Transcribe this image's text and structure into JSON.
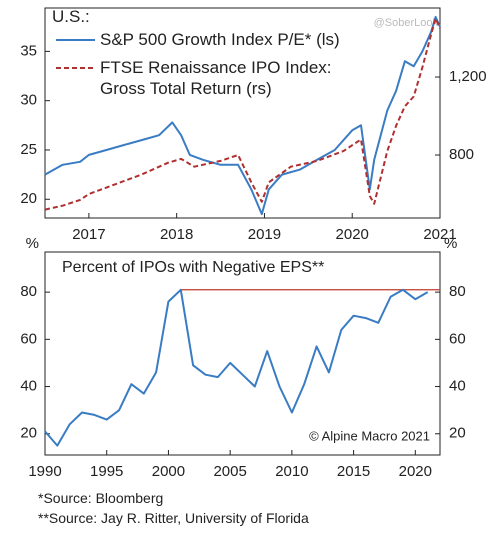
{
  "chart_data": [
    {
      "type": "line",
      "header": "U.S.:",
      "xlim": [
        2016.5,
        2021.0
      ],
      "xticks": [
        2017,
        2018,
        2019,
        2020,
        2021
      ],
      "ylim": [
        18.1,
        39.4
      ],
      "yticks": [
        20,
        25,
        30,
        35
      ],
      "y2lim": [
        477,
        1554
      ],
      "y2ticks": [
        {
          "value": 800,
          "label": "800"
        },
        {
          "value": 1200,
          "label": "1,200"
        }
      ],
      "watermark": "@SoberLook",
      "series": [
        {
          "name": "S&P 500 Growth Index P/E* (ls)",
          "color": "#3a7cc4",
          "axis": "y",
          "x": [
            2016.5,
            2016.7,
            2016.9,
            2017.0,
            2017.2,
            2017.4,
            2017.6,
            2017.8,
            2017.95,
            2018.05,
            2018.15,
            2018.3,
            2018.5,
            2018.7,
            2018.85,
            2018.97,
            2019.05,
            2019.2,
            2019.4,
            2019.6,
            2019.8,
            2020.0,
            2020.1,
            2020.2,
            2020.25,
            2020.4,
            2020.5,
            2020.6,
            2020.7,
            2020.8,
            2020.9,
            2020.95,
            2021.0
          ],
          "values": [
            22.5,
            23.5,
            23.8,
            24.5,
            25,
            25.5,
            26,
            26.5,
            27.8,
            26.5,
            24.5,
            24,
            23.5,
            23.5,
            21,
            18.5,
            21,
            22.5,
            23,
            24,
            25,
            27,
            27.5,
            21,
            24,
            29,
            31,
            34,
            33.5,
            35,
            37,
            38.5,
            37.5
          ]
        },
        {
          "name": "FTSE Renaissance IPO Index:\nGross Total Return (rs)",
          "color": "#b03030",
          "axis": "y2",
          "dashed": true,
          "x": [
            2016.5,
            2016.7,
            2016.9,
            2017.0,
            2017.3,
            2017.6,
            2017.9,
            2018.05,
            2018.2,
            2018.5,
            2018.7,
            2018.85,
            2018.97,
            2019.05,
            2019.3,
            2019.6,
            2019.9,
            2020.1,
            2020.2,
            2020.25,
            2020.4,
            2020.5,
            2020.6,
            2020.7,
            2020.8,
            2020.9,
            2020.95,
            2021.0
          ],
          "values": [
            520,
            540,
            570,
            600,
            650,
            700,
            760,
            780,
            740,
            770,
            800,
            660,
            560,
            660,
            740,
            770,
            820,
            880,
            590,
            550,
            820,
            950,
            1050,
            1100,
            1250,
            1420,
            1500,
            1450
          ]
        }
      ]
    },
    {
      "type": "line",
      "title": "Percent of IPOs with Negative EPS**",
      "y_unit": "%",
      "y2_unit": "%",
      "annotation": "© Alpine Macro 2021",
      "xlim": [
        1990,
        2022
      ],
      "xticks": [
        1990,
        1995,
        2000,
        2005,
        2010,
        2015,
        2020
      ],
      "ylim": [
        11,
        97
      ],
      "yticks": [
        20,
        40,
        60,
        80
      ],
      "y2lim": [
        11,
        97
      ],
      "y2ticks": [
        20,
        40,
        60,
        80
      ],
      "reference_line": {
        "value": 81,
        "from": 2001,
        "color": "#c0392b"
      },
      "series": [
        {
          "color": "#3a7cc4",
          "x": [
            1990,
            1991,
            1992,
            1993,
            1994,
            1995,
            1996,
            1997,
            1998,
            1999,
            2000,
            2001,
            2002,
            2003,
            2004,
            2005,
            2006,
            2007,
            2008,
            2009,
            2010,
            2011,
            2012,
            2013,
            2014,
            2015,
            2016,
            2017,
            2018,
            2019,
            2020,
            2021
          ],
          "values": [
            21,
            15,
            24,
            29,
            28,
            26,
            30,
            41,
            37,
            46,
            76,
            81,
            49,
            45,
            44,
            50,
            45,
            40,
            55,
            40,
            29,
            41,
            57,
            46,
            64,
            70,
            69,
            67,
            78,
            81,
            77,
            80
          ]
        }
      ]
    }
  ],
  "footnotes": [
    "*Source: Bloomberg",
    "**Source: Jay R. Ritter, University of Florida"
  ]
}
